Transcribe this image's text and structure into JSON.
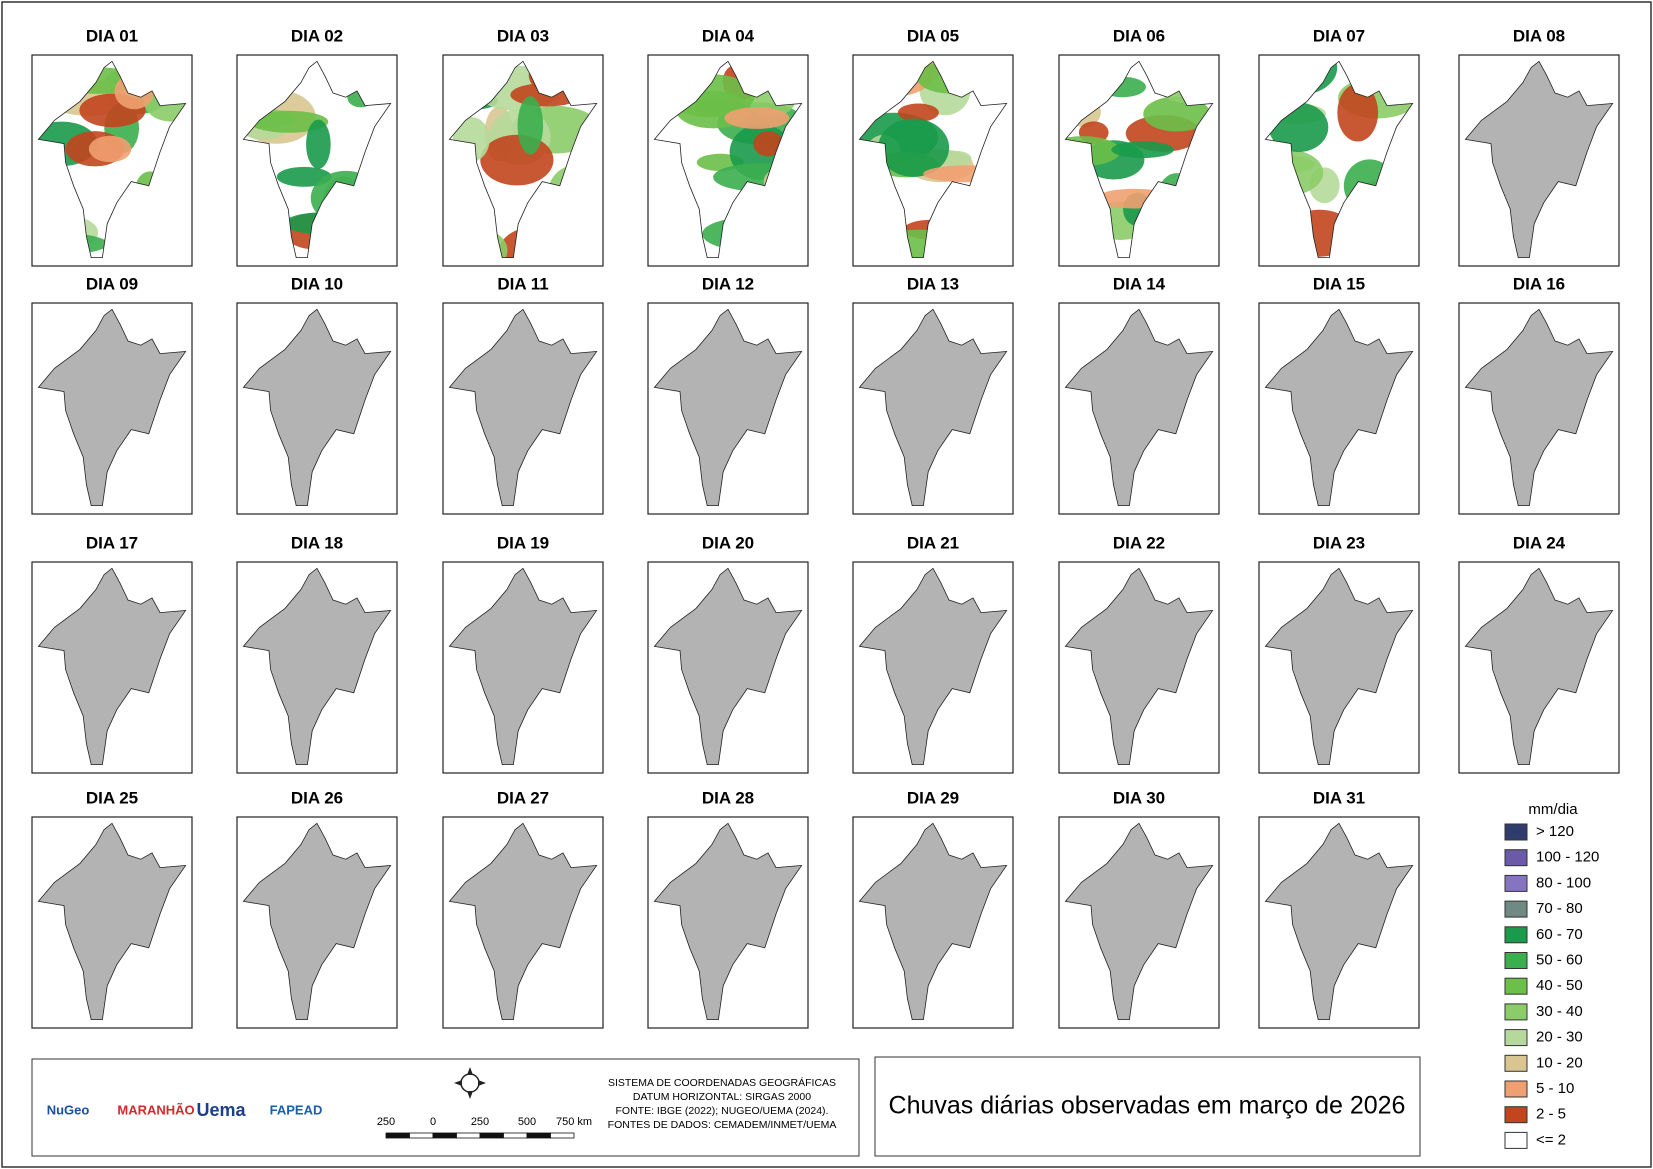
{
  "panels": [
    "DIA 01",
    "DIA 02",
    "DIA 03",
    "DIA 04",
    "DIA 05",
    "DIA 06",
    "DIA 07",
    "DIA 08",
    "DIA 09",
    "DIA 10",
    "DIA 11",
    "DIA 12",
    "DIA 13",
    "DIA 14",
    "DIA 15",
    "DIA 16",
    "DIA 17",
    "DIA 18",
    "DIA 19",
    "DIA 20",
    "DIA 21",
    "DIA 22",
    "DIA 23",
    "DIA 24",
    "DIA 25",
    "DIA 26",
    "DIA 27",
    "DIA 28",
    "DIA 29",
    "DIA 30",
    "DIA 31"
  ],
  "legend": {
    "title": "mm/dia",
    "items": [
      {
        "label": "> 120",
        "color": "#2f3d6e"
      },
      {
        "label": "100 - 120",
        "color": "#6a5aa8"
      },
      {
        "label": "80 - 100",
        "color": "#8674c2"
      },
      {
        "label": "70 - 80",
        "color": "#6e8a82"
      },
      {
        "label": "60 - 70",
        "color": "#1a9a4a"
      },
      {
        "label": "50 - 60",
        "color": "#3bae4e"
      },
      {
        "label": "40 - 50",
        "color": "#6cbf48"
      },
      {
        "label": "30 - 40",
        "color": "#8ccc68"
      },
      {
        "label": "20 - 30",
        "color": "#b5d99a"
      },
      {
        "label": "10 - 20",
        "color": "#d8c590"
      },
      {
        "label": "5 - 10",
        "color": "#f0a070"
      },
      {
        "label": "2 - 5",
        "color": "#c2451e"
      },
      {
        "label": "<= 2",
        "color": "#ffffff"
      }
    ]
  },
  "title": "Chuvas diárias observadas em março de 2026",
  "metadata": [
    "SISTEMA DE COORDENADAS GEOGRÁFICAS",
    "DATUM HORIZONTAL: SIRGAS 2000",
    "FONTE: IBGE (2022); NUGEO/UEMA (2024).",
    "FONTES DE DADOS: CEMADEM/INMET/UEMA"
  ],
  "scale_labels": [
    "250",
    "0",
    "250",
    "500",
    "750 km"
  ],
  "logos": [
    "NuGeo",
    "MARANHÃO",
    "Uema",
    "FAPEAD"
  ]
}
